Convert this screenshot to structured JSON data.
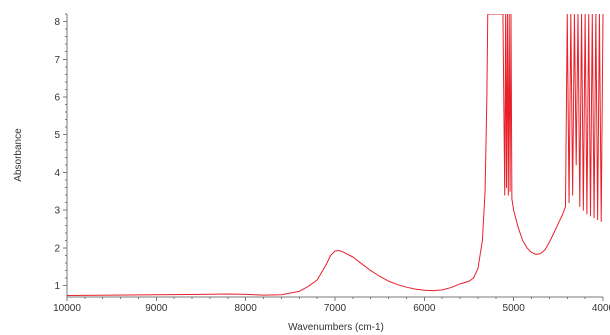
{
  "chart_data": {
    "type": "line",
    "title": "",
    "xlabel": "Wavenumbers (cm-1)",
    "ylabel": "Absorbance",
    "xlim": [
      10000,
      4000
    ],
    "ylim": [
      0.7,
      8.2
    ],
    "x_reversed": true,
    "grid": false,
    "x_ticks": [
      10000,
      9000,
      8000,
      7000,
      6000,
      5000,
      4000
    ],
    "x_tick_labels": [
      "10000",
      "9000",
      "8000",
      "7000",
      "6000",
      "5000",
      "4000"
    ],
    "y_ticks": [
      1,
      2,
      3,
      4,
      5,
      6,
      7,
      8
    ],
    "y_tick_labels": [
      "1",
      "2",
      "3",
      "4",
      "5",
      "6",
      "7",
      "8"
    ],
    "series": [
      {
        "name": "",
        "color": "#e8202a",
        "x": [
          10000,
          9500,
          9000,
          8500,
          8200,
          8000,
          7800,
          7600,
          7400,
          7300,
          7200,
          7100,
          7050,
          7000,
          6950,
          6900,
          6800,
          6700,
          6600,
          6500,
          6400,
          6300,
          6200,
          6100,
          6000,
          5900,
          5800,
          5700,
          5650,
          5600,
          5550,
          5500,
          5450,
          5400,
          5350,
          5320,
          5300,
          5290,
          5280,
          5270,
          5260,
          5240,
          5200,
          5150,
          5120,
          5100,
          5090,
          5080,
          5070,
          5060,
          5050,
          5040,
          5030,
          5020,
          5000,
          4950,
          4900,
          4850,
          4800,
          4750,
          4700,
          4650,
          4600,
          4550,
          4500,
          4450,
          4420,
          4400,
          4380,
          4360,
          4340,
          4320,
          4300,
          4280,
          4260,
          4240,
          4220,
          4200,
          4180,
          4160,
          4140,
          4120,
          4100,
          4080,
          4060,
          4040,
          4020,
          4000
        ],
        "y": [
          0.74,
          0.75,
          0.76,
          0.77,
          0.78,
          0.77,
          0.75,
          0.76,
          0.85,
          0.98,
          1.15,
          1.55,
          1.8,
          1.92,
          1.93,
          1.88,
          1.76,
          1.58,
          1.4,
          1.25,
          1.12,
          1.03,
          0.96,
          0.91,
          0.88,
          0.87,
          0.89,
          0.95,
          1.0,
          1.05,
          1.08,
          1.12,
          1.2,
          1.45,
          2.2,
          3.5,
          6.0,
          8.2,
          8.2,
          8.2,
          8.2,
          8.2,
          8.2,
          8.2,
          8.2,
          3.4,
          8.2,
          3.6,
          8.2,
          3.4,
          8.2,
          3.5,
          8.2,
          3.3,
          3.0,
          2.55,
          2.2,
          2.0,
          1.88,
          1.83,
          1.85,
          1.95,
          2.15,
          2.4,
          2.65,
          2.9,
          3.1,
          8.2,
          3.2,
          8.2,
          3.4,
          8.2,
          4.2,
          8.2,
          3.1,
          8.2,
          3.0,
          8.2,
          2.9,
          8.2,
          2.85,
          8.2,
          2.8,
          8.2,
          2.75,
          8.2,
          2.7,
          8.2
        ]
      }
    ]
  }
}
